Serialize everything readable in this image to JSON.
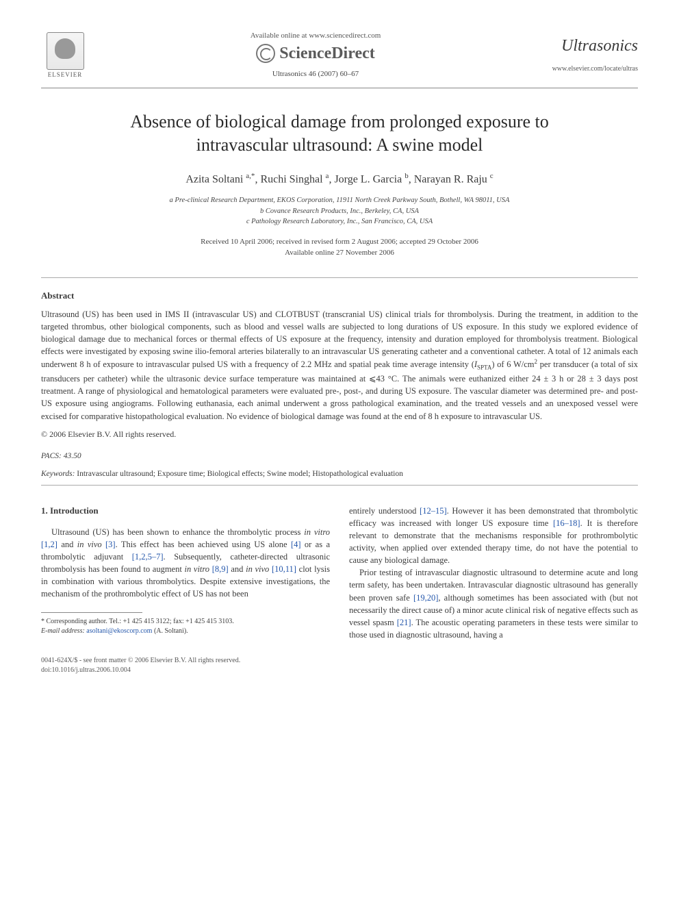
{
  "header": {
    "elsevier_label": "ELSEVIER",
    "available_online": "Available online at www.sciencedirect.com",
    "sciencedirect": "ScienceDirect",
    "journal_ref": "Ultrasonics 46 (2007) 60–67",
    "journal_name": "Ultrasonics",
    "journal_url": "www.elsevier.com/locate/ultras"
  },
  "title_line1": "Absence of biological damage from prolonged exposure to",
  "title_line2": "intravascular ultrasound: A swine model",
  "authors_html": "Azita Soltani <sup>a,*</sup>, Ruchi Singhal <sup>a</sup>, Jorge L. Garcia <sup>b</sup>, Narayan R. Raju <sup>c</sup>",
  "affiliations": {
    "a": "a Pre-clinical Research Department, EKOS Corporation, 11911 North Creek Parkway South, Bothell, WA 98011, USA",
    "b": "b Covance Research Products, Inc., Berkeley, CA, USA",
    "c": "c Pathology Research Laboratory, Inc., San Francisco, CA, USA"
  },
  "dates": {
    "received": "Received 10 April 2006; received in revised form 2 August 2006; accepted 29 October 2006",
    "available": "Available online 27 November 2006"
  },
  "abstract": {
    "heading": "Abstract",
    "body": "Ultrasound (US) has been used in IMS II (intravascular US) and CLOTBUST (transcranial US) clinical trials for thrombolysis. During the treatment, in addition to the targeted thrombus, other biological components, such as blood and vessel walls are subjected to long durations of US exposure. In this study we explored evidence of biological damage due to mechanical forces or thermal effects of US exposure at the frequency, intensity and duration employed for thrombolysis treatment. Biological effects were investigated by exposing swine ilio-femoral arteries bilaterally to an intravascular US generating catheter and a conventional catheter. A total of 12 animals each underwent 8 h of exposure to intravascular pulsed US with a frequency of 2.2 MHz and spatial peak time average intensity (ISPTA) of 6 W/cm² per transducer (a total of six transducers per catheter) while the ultrasonic device surface temperature was maintained at ⩽43 °C. The animals were euthanized either 24 ± 3 h or 28 ± 3 days post treatment. A range of physiological and hematological parameters were evaluated pre-, post-, and during US exposure. The vascular diameter was determined pre- and post-US exposure using angiograms. Following euthanasia, each animal underwent a gross pathological examination, and the treated vessels and an unexposed vessel were excised for comparative histopathological evaluation. No evidence of biological damage was found at the end of 8 h exposure to intravascular US.",
    "copyright": "© 2006 Elsevier B.V. All rights reserved."
  },
  "pacs": {
    "label": "PACS:",
    "value": "43.50"
  },
  "keywords": {
    "label": "Keywords:",
    "value": "Intravascular ultrasound; Exposure time; Biological effects; Swine model; Histopathological evaluation"
  },
  "intro": {
    "heading": "1. Introduction",
    "left_p1_a": "Ultrasound (US) has been shown to enhance the thrombolytic process ",
    "left_p1_invitro": "in vitro",
    "left_p1_ref1": " [1,2]",
    "left_p1_b": " and ",
    "left_p1_invivo": "in vivo",
    "left_p1_ref2": " [3]",
    "left_p1_c": ". This effect has been achieved using US alone ",
    "left_p1_ref3": "[4]",
    "left_p1_d": " or as a thrombolytic adjuvant ",
    "left_p1_ref4": "[1,2,5–7]",
    "left_p1_e": ". Subsequently, catheter-directed ultrasonic thrombolysis has been found to augment ",
    "left_p1_invitro2": "in vitro",
    "left_p1_ref5": " [8,9]",
    "left_p1_f": " and ",
    "left_p1_invivo2": "in vivo",
    "left_p1_ref6": " [10,11]",
    "left_p1_g": " clot lysis in combination with various thrombolytics. Despite extensive investigations, the mechanism of the prothrombolytic effect of US has not been",
    "right_p1_a": "entirely understood ",
    "right_p1_ref1": "[12–15]",
    "right_p1_b": ". However it has been demonstrated that thrombolytic efficacy was increased with longer US exposure time ",
    "right_p1_ref2": "[16–18]",
    "right_p1_c": ". It is therefore relevant to demonstrate that the mechanisms responsible for prothrombolytic activity, when applied over extended therapy time, do not have the potential to cause any biological damage.",
    "right_p2_a": "Prior testing of intravascular diagnostic ultrasound to determine acute and long term safety, has been undertaken. Intravascular diagnostic ultrasound has generally been proven safe ",
    "right_p2_ref1": "[19,20]",
    "right_p2_b": ", although sometimes has been associated with (but not necessarily the direct cause of) a minor acute clinical risk of negative effects such as vessel spasm ",
    "right_p2_ref2": "[21]",
    "right_p2_c": ". The acoustic operating parameters in these tests were similar to those used in diagnostic ultrasound, having a"
  },
  "footnote": {
    "corr": "* Corresponding author. Tel.: +1 425 415 3122; fax: +1 425 415 3103.",
    "email_label": "E-mail address:",
    "email": "asoltani@ekoscorp.com",
    "email_name": "(A. Soltani)."
  },
  "footer": {
    "line1": "0041-624X/$ - see front matter © 2006 Elsevier B.V. All rights reserved.",
    "line2": "doi:10.1016/j.ultras.2006.10.004"
  },
  "colors": {
    "text": "#3a3a3a",
    "link": "#2255aa",
    "rule": "#888888",
    "background": "#ffffff"
  },
  "typography": {
    "title_pt": 26,
    "body_pt": 12.5,
    "small_pt": 11,
    "family": "Georgia / Times"
  }
}
